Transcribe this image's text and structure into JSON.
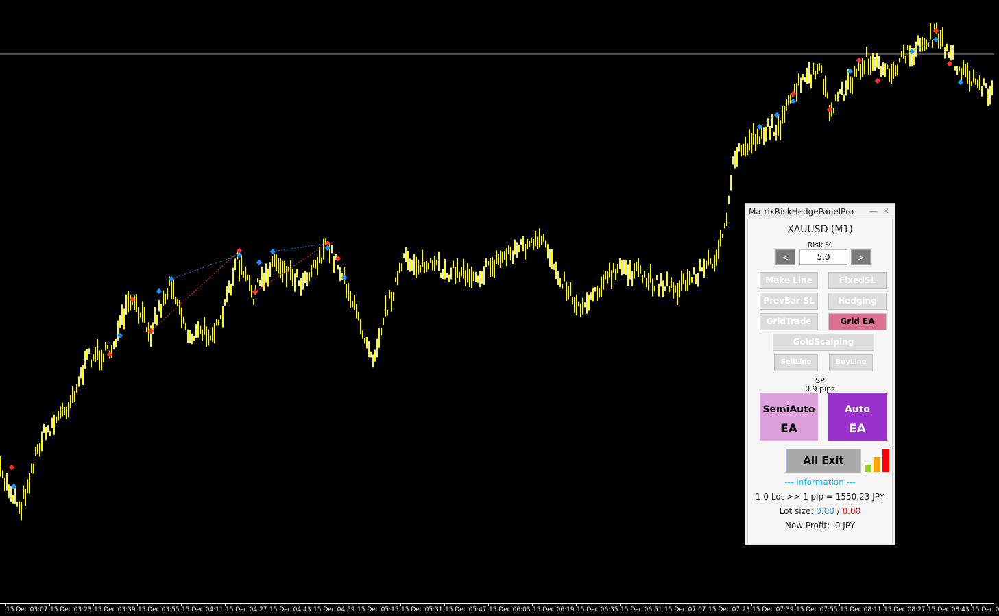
{
  "chart": {
    "candle_color": "#ffff00",
    "marker_buy_color": "#1e90ff",
    "marker_sell_color": "#ff3030",
    "time_labels": [
      "15 Dec 03:07",
      "15 Dec 03:23",
      "15 Dec 03:39",
      "15 Dec 03:55",
      "15 Dec 04:11",
      "15 Dec 04:27",
      "15 Dec 04:43",
      "15 Dec 04:59",
      "15 Dec 05:15",
      "15 Dec 05:31",
      "15 Dec 05:47",
      "15 Dec 06:03",
      "15 Dec 06:19",
      "15 Dec 06:35",
      "15 Dec 06:51",
      "15 Dec 07:07",
      "15 Dec 07:23",
      "15 Dec 07:39",
      "15 Dec 07:55",
      "15 Dec 08:11",
      "15 Dec 08:27",
      "15 Dec 08:43",
      "15 Dec 0"
    ]
  },
  "panel": {
    "title": "MatrixRiskHedgePanelPro",
    "minimize": "—",
    "close": "✕",
    "symbol": "XAUUSD (M1)",
    "risk_label": "Risk %",
    "risk_value": "5.0",
    "dec": "<",
    "inc": ">",
    "buttons": {
      "make_line": "Make Line",
      "fixed_sl": "FixedSL",
      "prevbar_sl": "PrevBar SL",
      "hedging": "Hedging",
      "grid_trade": "GridTrade",
      "grid_ea": "Grid EA",
      "gold_scalping": "GoldScalping",
      "sell_line": "SellLine",
      "buy_line": "BuyLine"
    },
    "sp_label": "SP",
    "sp_value": "0.9 pips",
    "semi_auto": {
      "line1": "SemiAuto",
      "line2": "EA",
      "color": "#dda0dd"
    },
    "auto": {
      "line1": "Auto",
      "line2": "EA",
      "color": "#9932cc"
    },
    "all_exit": "All Exit",
    "signal_bars": [
      "#9acd32",
      "#ffa500",
      "#ff0000"
    ],
    "info_header": "--- Information ---",
    "pip_value": "1.0 Lot >> 1 pip = 1550.23 JPY",
    "lot_label": "Lot size:",
    "lot_buy": "0.00",
    "lot_sep": "/",
    "lot_sell": "0.00",
    "profit_label": "Now Profit:",
    "profit_value": "0 JPY"
  }
}
